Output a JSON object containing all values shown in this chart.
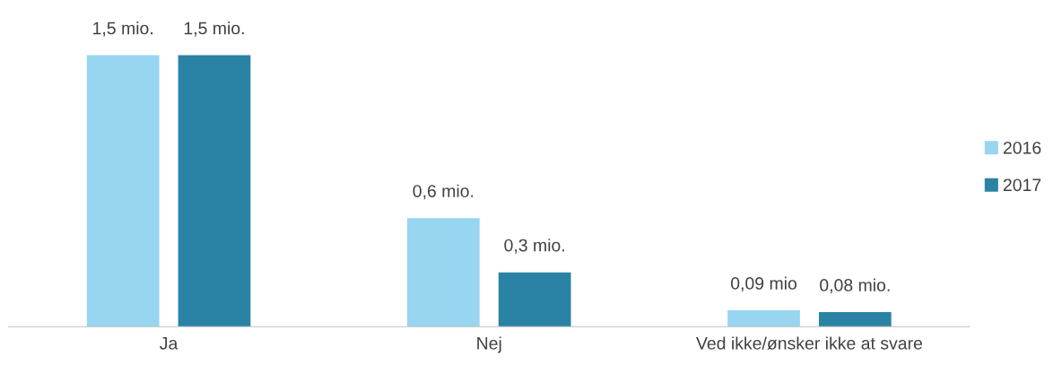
{
  "chart_data": {
    "type": "bar",
    "categories": [
      "Ja",
      "Nej",
      "Ved ikke/ønsker ikke at svare"
    ],
    "series": [
      {
        "name": "2016",
        "color": "#97d5f0",
        "values": [
          1.5,
          0.6,
          0.09
        ],
        "value_labels": [
          "1,5 mio.",
          "0,6 mio.",
          "0,09 mio"
        ]
      },
      {
        "name": "2017",
        "color": "#2a83a5",
        "values": [
          1.5,
          0.3,
          0.08
        ],
        "value_labels": [
          "1,5 mio.",
          "0,3 mio.",
          "0,08 mio."
        ]
      }
    ],
    "legend": "right",
    "grid": false,
    "tick_labels": "x"
  }
}
